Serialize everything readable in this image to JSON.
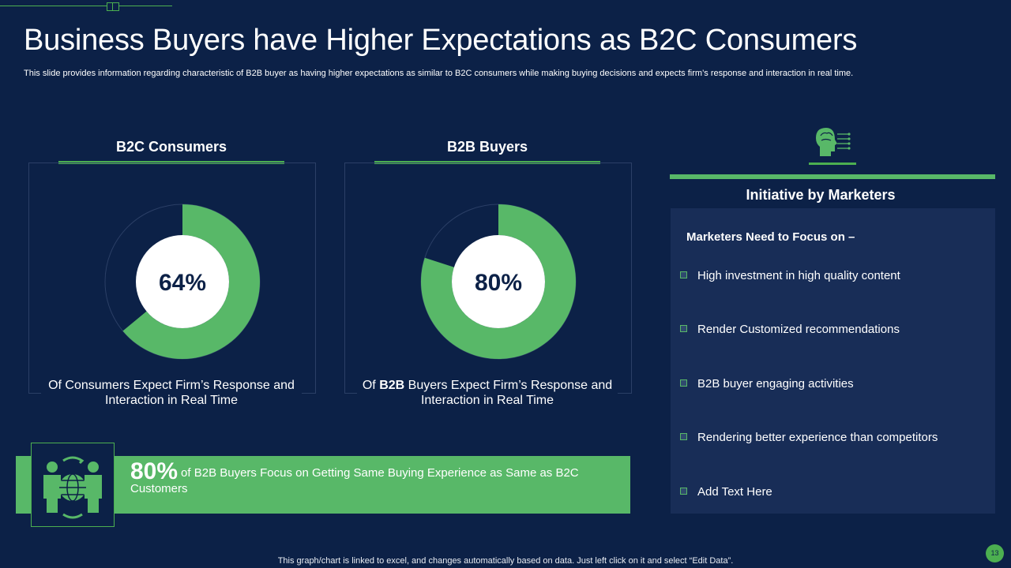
{
  "slide": {
    "title": "Business Buyers have Higher Expectations as B2C Consumers",
    "subtitle": "This slide provides information regarding characteristic of B2B buyer as having higher expectations as similar to B2C consumers while making buying decisions and expects firm’s response and interaction in real time.",
    "footnote": "This graph/chart is linked to excel, and changes automatically based on data. Just left click on it and select “Edit Data”.",
    "page_number": "13"
  },
  "chart_data": [
    {
      "type": "pie",
      "title": "B2C Consumers",
      "value": 64,
      "value_label": "64%",
      "caption": "Of Consumers Expect Firm’s Response and Interaction  in Real Time",
      "colors": {
        "filled": "#58b868",
        "remainder": "#0c2147",
        "center": "#ffffff"
      }
    },
    {
      "type": "pie",
      "title": "B2B Buyers",
      "value": 80,
      "value_label": "80%",
      "caption_prefix": "Of ",
      "caption_bold": "B2B",
      "caption_suffix": " Buyers Expect Firm’s Response and Interaction  in Real Time",
      "colors": {
        "filled": "#58b868",
        "remainder": "#0c2147",
        "center": "#ffffff"
      }
    }
  ],
  "banner": {
    "big": "80%",
    "text": "of B2B Buyers Focus on Getting Same Buying Experience as Same as B2C Customers",
    "icon": "global-team-icon"
  },
  "initiative": {
    "icon": "brain-head-icon",
    "heading": "Initiative by Marketers",
    "panel_heading": "Marketers Need to Focus on –",
    "items": [
      "High investment in high quality content",
      "Render Customized recommendations",
      "B2B buyer engaging activities",
      "Rendering better experience than competitors",
      "Add Text Here"
    ]
  },
  "colors": {
    "background": "#0c2147",
    "accent": "#58b868",
    "panel": "#182d57"
  }
}
